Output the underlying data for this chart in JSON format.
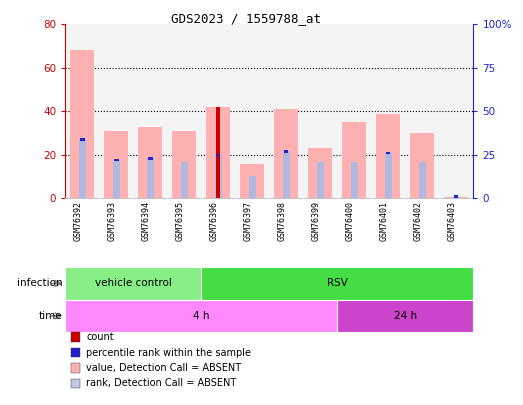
{
  "title": "GDS2023 / 1559788_at",
  "samples": [
    "GSM76392",
    "GSM76393",
    "GSM76394",
    "GSM76395",
    "GSM76396",
    "GSM76397",
    "GSM76398",
    "GSM76399",
    "GSM76400",
    "GSM76401",
    "GSM76402",
    "GSM76403"
  ],
  "value_bars": [
    68,
    31,
    33,
    31,
    42,
    16,
    41,
    23,
    35,
    39,
    30,
    0.5
  ],
  "rank_bars": [
    34,
    22,
    23,
    21,
    25,
    13,
    27,
    21,
    21,
    26,
    21,
    1
  ],
  "count_bar_idx": 4,
  "count_bar_value": 42,
  "count_bar_color": "#cc0000",
  "value_bar_color": "#ffb0b0",
  "rank_bar_color": "#b0b8e0",
  "blue_marker_indices": [
    0,
    1,
    2,
    4,
    6,
    9,
    11
  ],
  "blue_marker_values": [
    34,
    22,
    23,
    25,
    27,
    26,
    1
  ],
  "blue_marker_color": "#2222cc",
  "ylim_left": [
    0,
    80
  ],
  "ylim_right": [
    0,
    100
  ],
  "yticks_left": [
    0,
    20,
    40,
    60,
    80
  ],
  "yticks_right": [
    0,
    25,
    50,
    75,
    100
  ],
  "ytick_labels_right": [
    "0",
    "25",
    "50",
    "75",
    "100%"
  ],
  "left_tick_color": "#cc0000",
  "right_tick_color": "#2222cc",
  "infection_groups": [
    {
      "label": "vehicle control",
      "start": 0,
      "end": 4,
      "color": "#88ee88"
    },
    {
      "label": "RSV",
      "start": 4,
      "end": 12,
      "color": "#44dd44"
    }
  ],
  "time_groups": [
    {
      "label": "4 h",
      "start": 0,
      "end": 8,
      "color": "#ff88ff"
    },
    {
      "label": "24 h",
      "start": 8,
      "end": 12,
      "color": "#cc44cc"
    }
  ],
  "infection_label": "infection",
  "time_label": "time",
  "legend_items": [
    {
      "color": "#cc0000",
      "label": "count"
    },
    {
      "color": "#2222cc",
      "label": "percentile rank within the sample"
    },
    {
      "color": "#ffb0b0",
      "label": "value, Detection Call = ABSENT"
    },
    {
      "color": "#c0c8e8",
      "label": "rank, Detection Call = ABSENT"
    }
  ],
  "background_color": "#ffffff",
  "bar_area_bg": "#e0e0e0"
}
